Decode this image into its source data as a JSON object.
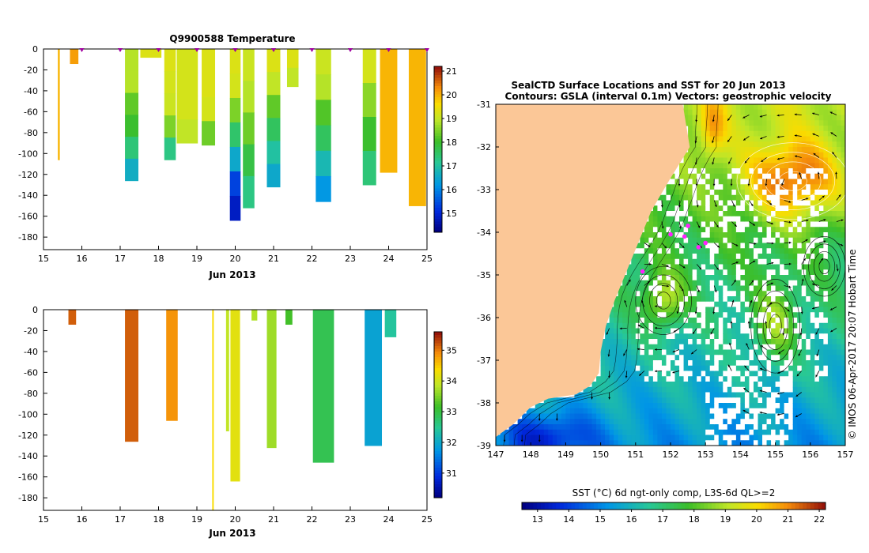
{
  "chart_data": [
    {
      "type": "heatmap",
      "id": "temperature",
      "title": "Q9900588  Temperature",
      "xlabel": "Jun 2013",
      "x_ticks": [
        15,
        16,
        17,
        18,
        19,
        20,
        21,
        22,
        23,
        24,
        25
      ],
      "y_ticks": [
        0,
        -20,
        -40,
        -60,
        -80,
        -100,
        -120,
        -140,
        -160,
        -180
      ],
      "xlim": [
        15,
        25
      ],
      "ylim": [
        -192,
        0
      ],
      "colorbar": {
        "ticks": [
          15,
          16,
          17,
          18,
          19,
          20,
          21
        ],
        "range": [
          14.2,
          21.2
        ]
      },
      "surface_markers": [
        16,
        17,
        18,
        19,
        20,
        21,
        22,
        23,
        24,
        25
      ],
      "profiles": [
        {
          "t": 15.4,
          "w": 0.05,
          "depth": 106,
          "values": [
            20.0
          ]
        },
        {
          "t": 15.8,
          "w": 0.22,
          "depth": 14,
          "values": [
            20.2
          ]
        },
        {
          "t": 17.3,
          "w": 0.35,
          "depth": 126,
          "values": [
            18.9,
            18.9,
            18.3,
            18.0,
            17.4,
            16.6
          ]
        },
        {
          "t": 17.8,
          "w": 0.55,
          "depth": 8,
          "values": [
            19.3
          ]
        },
        {
          "t": 18.3,
          "w": 0.3,
          "depth": 106,
          "values": [
            19.3,
            19.2,
            19.1,
            18.5,
            17.3
          ]
        },
        {
          "t": 18.75,
          "w": 0.55,
          "depth": 90,
          "values": [
            19.2,
            19.2,
            19.2,
            19.0
          ]
        },
        {
          "t": 19.3,
          "w": 0.35,
          "depth": 92,
          "values": [
            19.3,
            19.3,
            19.2,
            18.4
          ]
        },
        {
          "t": 20.0,
          "w": 0.28,
          "depth": 164,
          "values": [
            19.3,
            19.2,
            18.5,
            17.5,
            16.5,
            15.3,
            14.8
          ]
        },
        {
          "t": 20.35,
          "w": 0.3,
          "depth": 152,
          "values": [
            19.1,
            18.9,
            18.4,
            17.8,
            17.3
          ]
        },
        {
          "t": 21.0,
          "w": 0.35,
          "depth": 132,
          "values": [
            19.3,
            19.0,
            18.3,
            17.6,
            17.0,
            16.5
          ]
        },
        {
          "t": 21.5,
          "w": 0.3,
          "depth": 36,
          "values": [
            19.3,
            19.0
          ]
        },
        {
          "t": 22.3,
          "w": 0.4,
          "depth": 146,
          "values": [
            19.1,
            18.9,
            18.2,
            17.6,
            16.8,
            16.2
          ]
        },
        {
          "t": 23.5,
          "w": 0.35,
          "depth": 130,
          "values": [
            19.2,
            18.6,
            18.0,
            17.4
          ]
        },
        {
          "t": 24.0,
          "w": 0.45,
          "depth": 118,
          "values": [
            20.0
          ]
        },
        {
          "t": 24.75,
          "w": 0.45,
          "depth": 150,
          "values": [
            20.0
          ]
        }
      ]
    },
    {
      "type": "heatmap",
      "id": "salinity",
      "title": "",
      "xlabel": "Jun 2013",
      "x_ticks": [
        15,
        16,
        17,
        18,
        19,
        20,
        21,
        22,
        23,
        24,
        25
      ],
      "y_ticks": [
        0,
        -20,
        -40,
        -60,
        -80,
        -100,
        -120,
        -140,
        -160,
        -180
      ],
      "xlim": [
        15,
        25
      ],
      "ylim": [
        -192,
        0
      ],
      "colorbar": {
        "ticks": [
          31,
          32,
          33,
          34,
          35
        ],
        "range": [
          30.2,
          35.6
        ]
      },
      "profiles": [
        {
          "t": 15.75,
          "w": 0.2,
          "depth": 14,
          "values": [
            35.2
          ]
        },
        {
          "t": 17.3,
          "w": 0.35,
          "depth": 126,
          "values": [
            35.2
          ]
        },
        {
          "t": 18.35,
          "w": 0.3,
          "depth": 106,
          "values": [
            34.9
          ]
        },
        {
          "t": 19.42,
          "w": 0.04,
          "depth": 192,
          "values": [
            34.4
          ]
        },
        {
          "t": 19.8,
          "w": 0.08,
          "depth": 116,
          "values": [
            33.9
          ]
        },
        {
          "t": 20.0,
          "w": 0.25,
          "depth": 164,
          "values": [
            34.2
          ]
        },
        {
          "t": 20.5,
          "w": 0.15,
          "depth": 10,
          "values": [
            33.8
          ]
        },
        {
          "t": 20.95,
          "w": 0.25,
          "depth": 132,
          "values": [
            33.7
          ]
        },
        {
          "t": 21.4,
          "w": 0.18,
          "depth": 14,
          "values": [
            33.2
          ]
        },
        {
          "t": 22.3,
          "w": 0.55,
          "depth": 146,
          "values": [
            32.9
          ]
        },
        {
          "t": 23.6,
          "w": 0.45,
          "depth": 130,
          "values": [
            31.9
          ]
        },
        {
          "t": 24.05,
          "w": 0.3,
          "depth": 26,
          "values": [
            32.4
          ]
        }
      ]
    },
    {
      "type": "heatmap",
      "id": "sst_map",
      "title": "SealCTD Surface Locations and SST for 20 Jun 2013",
      "subtitle": "Contours: GSLA (interval 0.1m) Vectors: geostrophic velocity",
      "x_ticks": [
        147,
        148,
        149,
        150,
        151,
        152,
        153,
        154,
        155,
        156,
        157
      ],
      "y_ticks": [
        -31,
        -32,
        -33,
        -34,
        -35,
        -36,
        -37,
        -38,
        -39
      ],
      "xlim": [
        147,
        157
      ],
      "ylim": [
        -39,
        -31
      ],
      "colorbar_label": "SST (°C) 6d ngt-only comp, L3S-6d QL>=2",
      "colorbar_ticks": [
        13,
        14,
        15,
        16,
        17,
        18,
        19,
        20,
        21,
        22
      ],
      "colorbar_range": [
        12.5,
        22.2
      ],
      "side_text": "© IMOS 06-Apr-2017 20:07 Hobart Time",
      "seal_positions": [
        {
          "lon": 151.2,
          "lat": -34.92
        },
        {
          "lon": 152.0,
          "lat": -34.05
        },
        {
          "lon": 152.4,
          "lat": -34.1
        },
        {
          "lon": 152.8,
          "lat": -34.35
        },
        {
          "lon": 153.0,
          "lat": -34.25
        },
        {
          "lon": 152.5,
          "lat": -33.85
        }
      ]
    }
  ]
}
